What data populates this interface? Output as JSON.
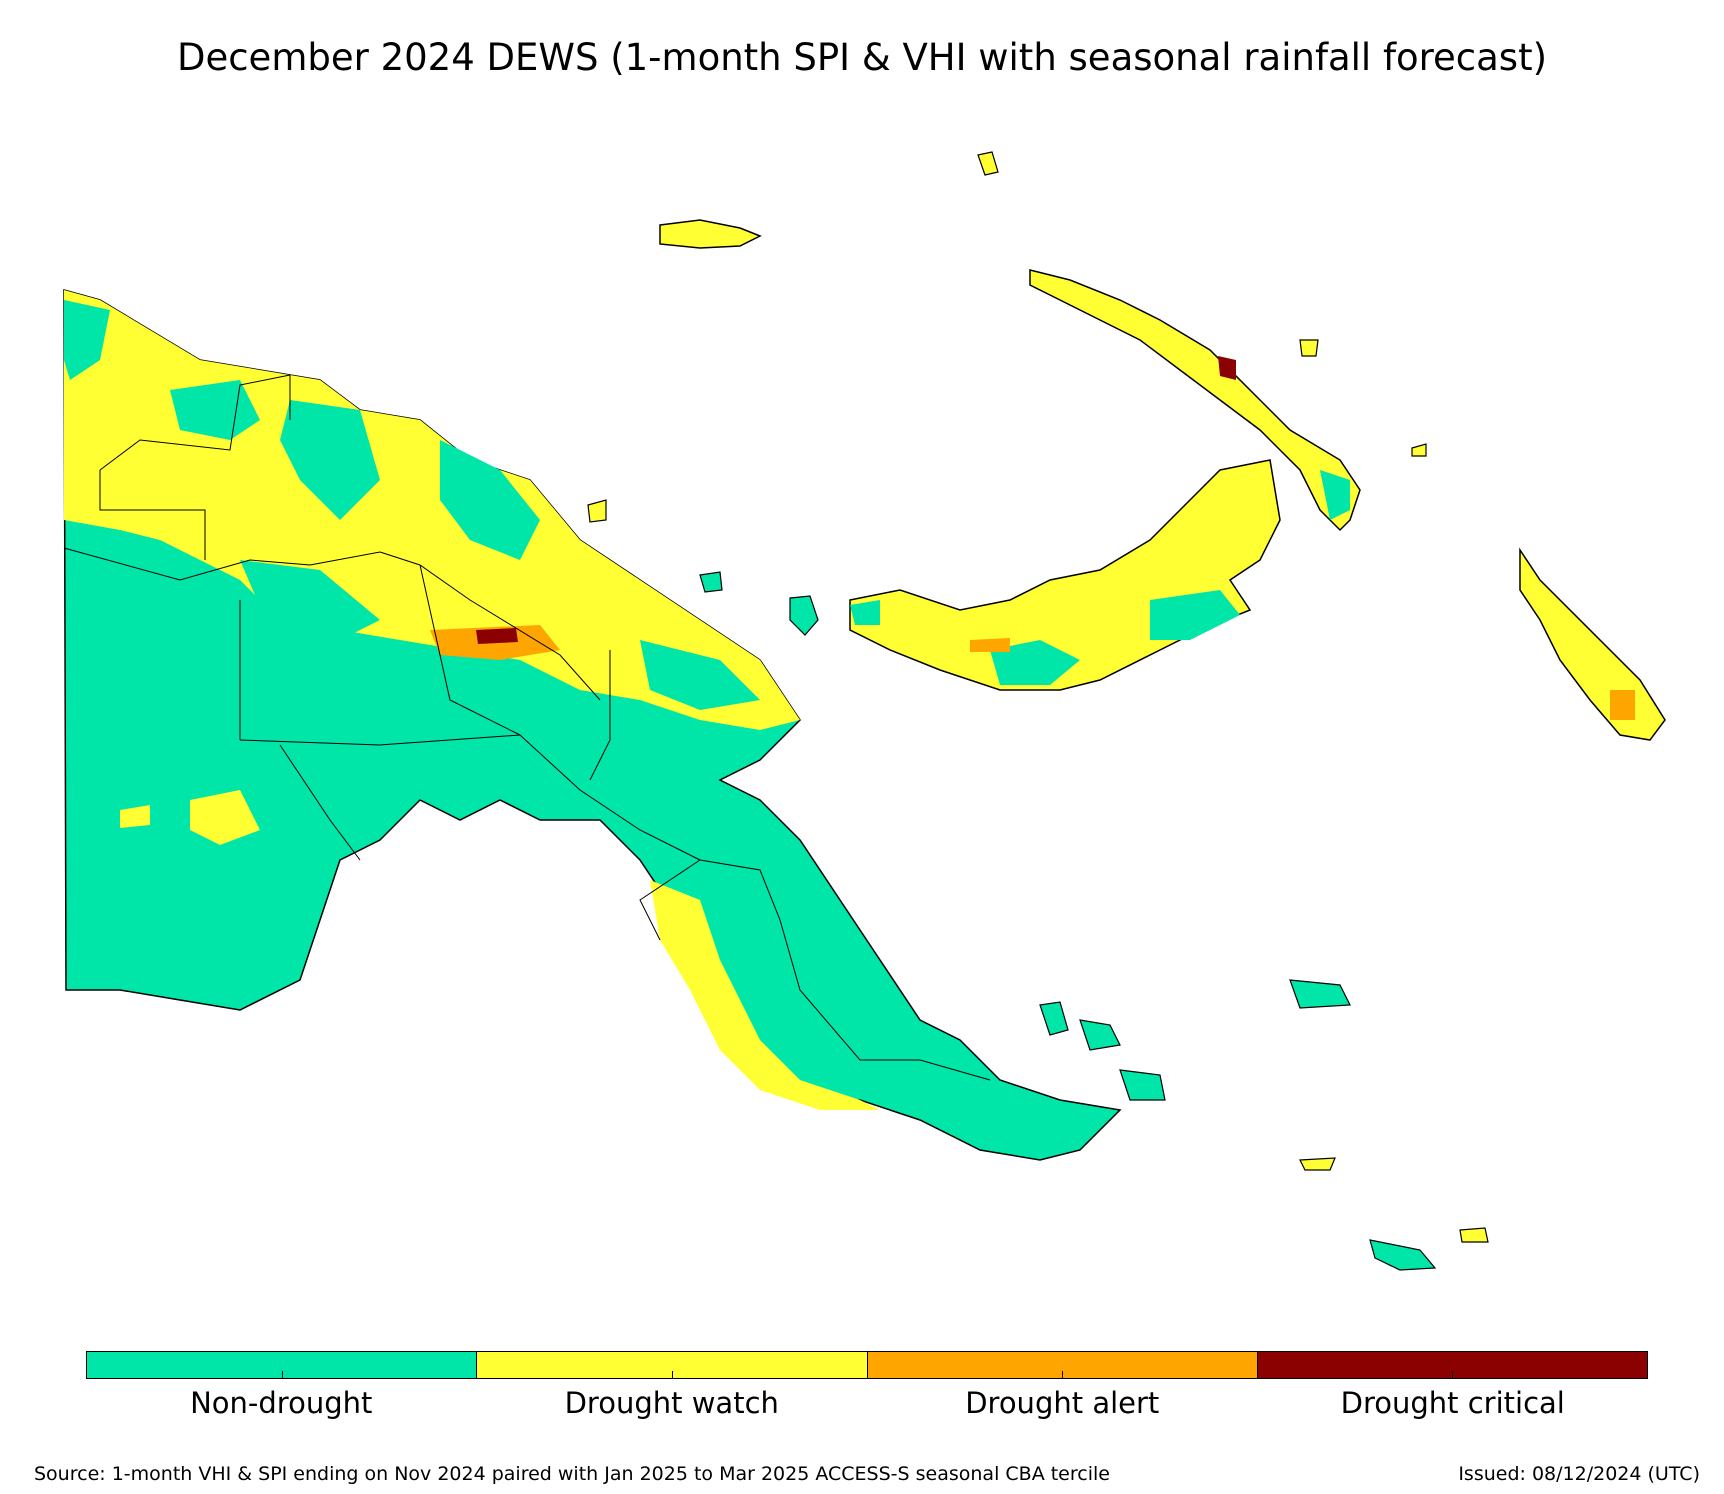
{
  "title": "December 2024 DEWS (1-month SPI & VHI with seasonal rainfall forecast)",
  "colors": {
    "non_drought": "#00e6a8",
    "drought_watch": "#ffff33",
    "drought_alert": "#ffa500",
    "drought_critical": "#8b0000",
    "boundary": "#000000"
  },
  "legend": [
    {
      "label": "Non-drought",
      "color": "#00e6a8"
    },
    {
      "label": "Drought watch",
      "color": "#ffff33"
    },
    {
      "label": "Drought alert",
      "color": "#ffa500"
    },
    {
      "label": "Drought critical",
      "color": "#8b0000"
    }
  ],
  "footer": {
    "source": "Source: 1-month VHI & SPI ending on Nov 2024 paired with Jan 2025 to Mar 2025 ACCESS-S seasonal CBA tercile",
    "issued": "Issued: 08/12/2024 (UTC)"
  }
}
